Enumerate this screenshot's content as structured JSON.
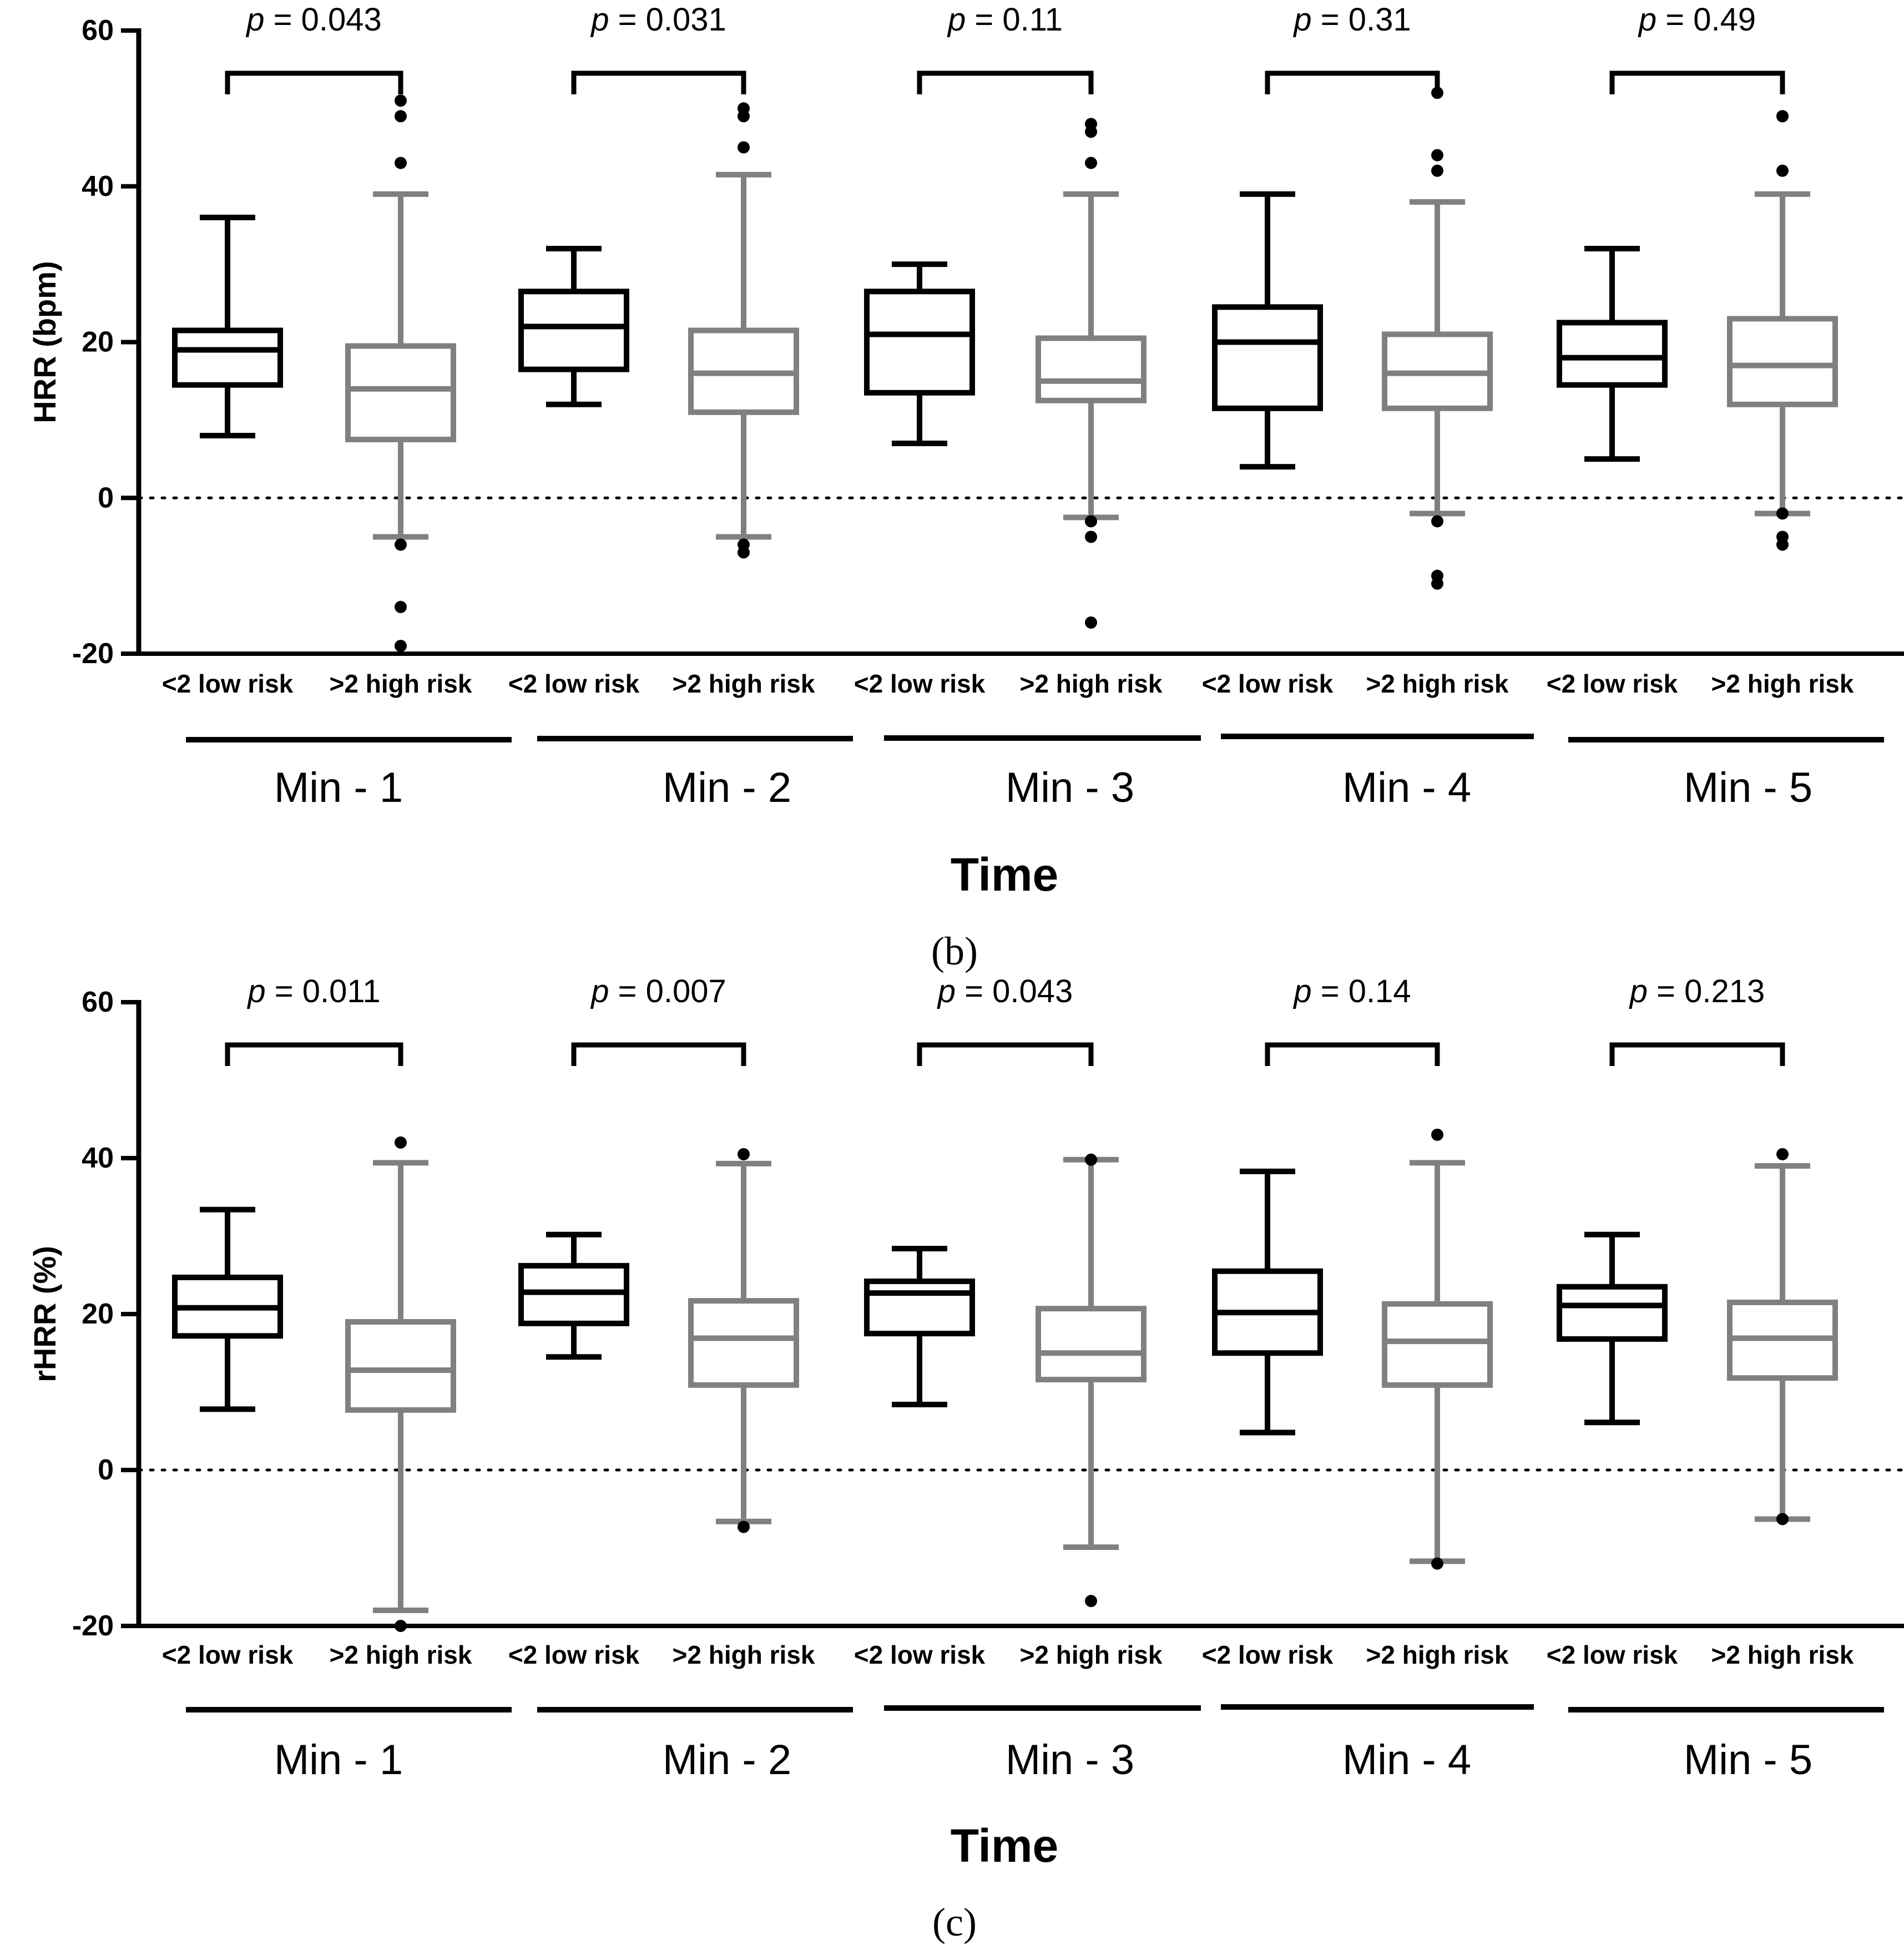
{
  "chart_data": [
    {
      "type": "box",
      "panel_label": "(b)",
      "ylabel": "HRR (bpm)",
      "xlabel": "Time",
      "ylim": [
        -20,
        60
      ],
      "yticks": [
        "-20",
        "0",
        "20",
        "40",
        "60"
      ],
      "reference_line": 0,
      "group_labels": [
        "<2 low risk",
        ">2 high risk"
      ],
      "group_colors": [
        "#000000",
        "#808080"
      ],
      "categories": [
        "Min - 1",
        "Min - 2",
        "Min - 3",
        "Min - 4",
        "Min - 5"
      ],
      "p_labels": [
        {
          "prefix": "p",
          "text": " = 0.043"
        },
        {
          "prefix": "p",
          "text": " = 0.031"
        },
        {
          "prefix": "p",
          "text": " = 0.11"
        },
        {
          "prefix": "p",
          "text": " = 0.31"
        },
        {
          "prefix": "p",
          "text": " = 0.49"
        }
      ],
      "series": [
        {
          "name": "<2 low risk",
          "boxes": [
            {
              "whisker_low": 8,
              "q1": 14.5,
              "median": 19,
              "q3": 21.5,
              "whisker_high": 36,
              "outliers": []
            },
            {
              "whisker_low": 12,
              "q1": 16.5,
              "median": 22,
              "q3": 26.5,
              "whisker_high": 32,
              "outliers": []
            },
            {
              "whisker_low": 7,
              "q1": 13.5,
              "median": 21,
              "q3": 26.5,
              "whisker_high": 30,
              "outliers": []
            },
            {
              "whisker_low": 4,
              "q1": 11.5,
              "median": 20,
              "q3": 24.5,
              "whisker_high": 39,
              "outliers": []
            },
            {
              "whisker_low": 5,
              "q1": 14.5,
              "median": 18,
              "q3": 22.5,
              "whisker_high": 32,
              "outliers": []
            }
          ]
        },
        {
          "name": ">2 high risk",
          "boxes": [
            {
              "whisker_low": -5,
              "q1": 7.5,
              "median": 14,
              "q3": 19.5,
              "whisker_high": 39,
              "outliers": [
                51,
                49,
                43,
                -6,
                -14,
                -19
              ]
            },
            {
              "whisker_low": -5,
              "q1": 11,
              "median": 16,
              "q3": 21.5,
              "whisker_high": 41.5,
              "outliers": [
                50,
                49,
                45,
                -6,
                -7
              ]
            },
            {
              "whisker_low": -2.5,
              "q1": 12.5,
              "median": 15,
              "q3": 20.5,
              "whisker_high": 39,
              "outliers": [
                48,
                47,
                43,
                -3,
                -5,
                -16
              ]
            },
            {
              "whisker_low": -2,
              "q1": 11.5,
              "median": 16,
              "q3": 21,
              "whisker_high": 38,
              "outliers": [
                52,
                44,
                42,
                -3,
                -10,
                -11
              ]
            },
            {
              "whisker_low": -2,
              "q1": 12,
              "median": 17,
              "q3": 23,
              "whisker_high": 39,
              "outliers": [
                49,
                49,
                42,
                -2,
                -5,
                -6
              ]
            }
          ]
        }
      ]
    },
    {
      "type": "box",
      "panel_label": "(c)",
      "ylabel": "rHRR (%)",
      "xlabel": "Time",
      "ylim": [
        -20,
        60
      ],
      "yticks": [
        "-20",
        "0",
        "20",
        "40",
        "60"
      ],
      "reference_line": 0,
      "group_labels": [
        "<2 low risk",
        ">2 high risk"
      ],
      "group_colors": [
        "#000000",
        "#808080"
      ],
      "categories": [
        "Min - 1",
        "Min - 2",
        "Min - 3",
        "Min - 4",
        "Min - 5"
      ],
      "p_labels": [
        {
          "prefix": "p",
          "text": " = 0.011"
        },
        {
          "prefix": "p",
          "text": " = 0.007"
        },
        {
          "prefix": "p",
          "text": " = 0.043"
        },
        {
          "prefix": "p",
          "text": " = 0.14"
        },
        {
          "prefix": "p",
          "text": " = 0.213"
        }
      ],
      "series": [
        {
          "name": "<2 low risk",
          "boxes": [
            {
              "whisker_low": 7.8,
              "q1": 17.2,
              "median": 20.8,
              "q3": 24.7,
              "whisker_high": 33.4,
              "outliers": []
            },
            {
              "whisker_low": 14.5,
              "q1": 18.8,
              "median": 22.8,
              "q3": 26.2,
              "whisker_high": 30.2,
              "outliers": []
            },
            {
              "whisker_low": 8.4,
              "q1": 17.5,
              "median": 22.7,
              "q3": 24.2,
              "whisker_high": 28.4,
              "outliers": []
            },
            {
              "whisker_low": 4.8,
              "q1": 15,
              "median": 20.2,
              "q3": 25.5,
              "whisker_high": 38.3,
              "outliers": []
            },
            {
              "whisker_low": 6.1,
              "q1": 16.8,
              "median": 21.1,
              "q3": 23.5,
              "whisker_high": 30.2,
              "outliers": []
            }
          ]
        },
        {
          "name": ">2 high risk",
          "boxes": [
            {
              "whisker_low": -18,
              "q1": 7.7,
              "median": 12.8,
              "q3": 19,
              "whisker_high": 39.4,
              "outliers": [
                42,
                -20
              ]
            },
            {
              "whisker_low": -6.6,
              "q1": 10.9,
              "median": 16.9,
              "q3": 21.7,
              "whisker_high": 39.3,
              "outliers": [
                40.5,
                -7.3
              ]
            },
            {
              "whisker_low": -9.9,
              "q1": 11.6,
              "median": 15,
              "q3": 20.7,
              "whisker_high": 39.8,
              "outliers": [
                39.8,
                -16.8
              ]
            },
            {
              "whisker_low": -11.7,
              "q1": 10.9,
              "median": 16.5,
              "q3": 21.3,
              "whisker_high": 39.4,
              "outliers": [
                43,
                -12
              ]
            },
            {
              "whisker_low": -6.3,
              "q1": 11.8,
              "median": 16.9,
              "q3": 21.5,
              "whisker_high": 39,
              "outliers": [
                40.5,
                -6.3
              ]
            }
          ]
        }
      ]
    }
  ]
}
